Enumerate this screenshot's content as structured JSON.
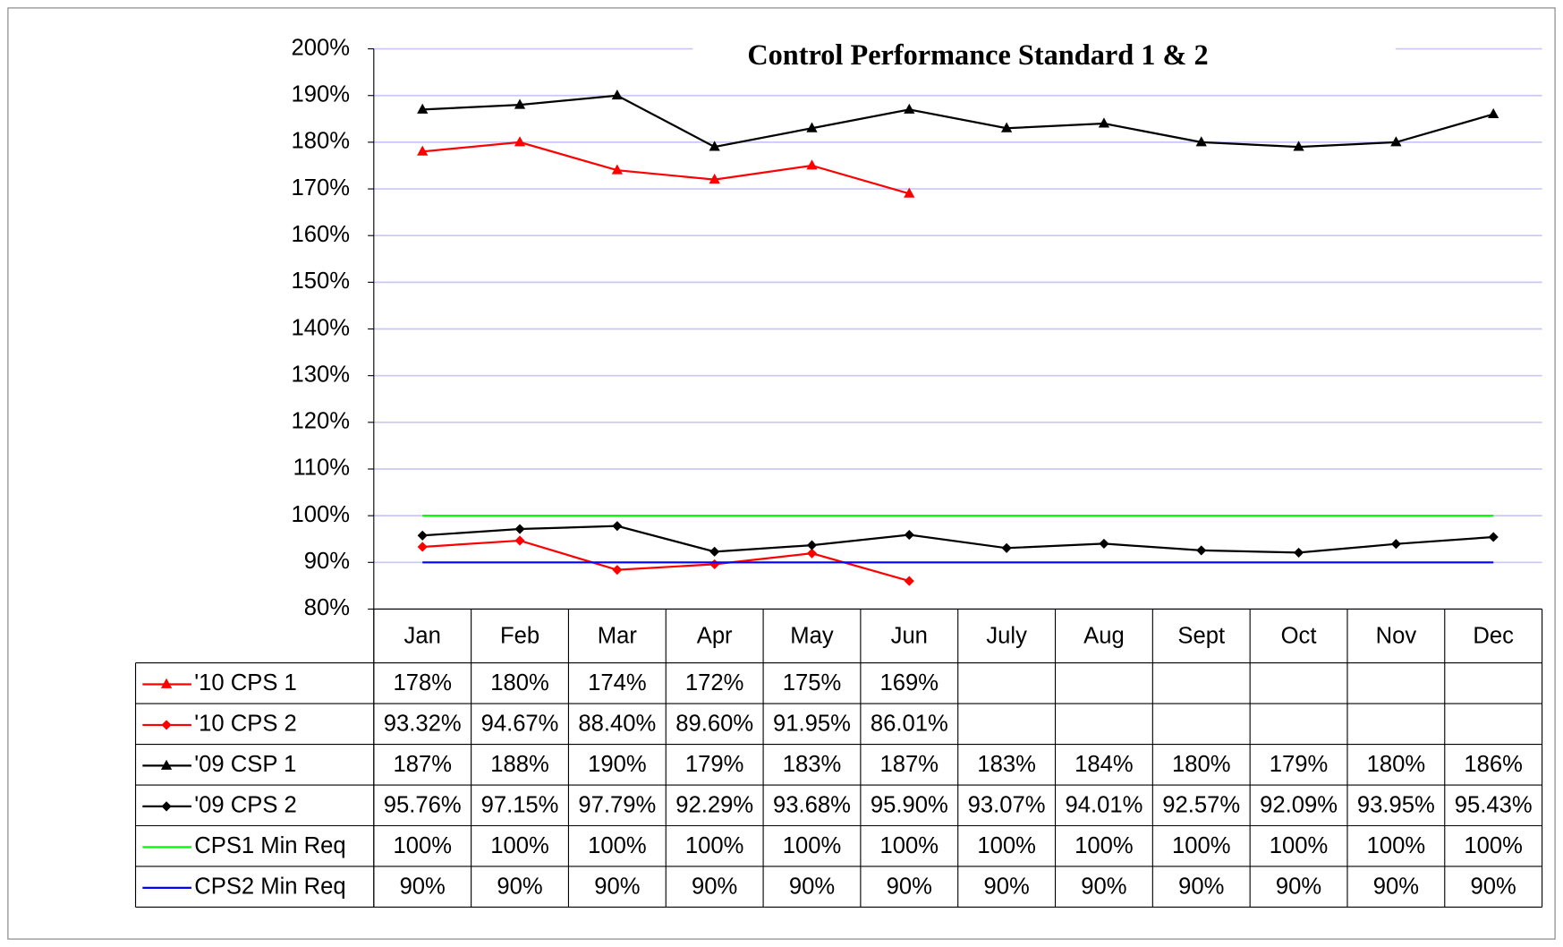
{
  "chart_data": {
    "type": "line",
    "title": "Control Performance Standard 1 & 2",
    "categories": [
      "Jan",
      "Feb",
      "Mar",
      "Apr",
      "May",
      "Jun",
      "July",
      "Aug",
      "Sept",
      "Oct",
      "Nov",
      "Dec"
    ],
    "ylim": [
      80,
      200
    ],
    "yticks": [
      {
        "value": 80,
        "label": "80%"
      },
      {
        "value": 90,
        "label": "90%"
      },
      {
        "value": 100,
        "label": "100%"
      },
      {
        "value": 110,
        "label": "110%"
      },
      {
        "value": 120,
        "label": "120%"
      },
      {
        "value": 130,
        "label": "130%"
      },
      {
        "value": 140,
        "label": "140%"
      },
      {
        "value": 150,
        "label": "150%"
      },
      {
        "value": 160,
        "label": "160%"
      },
      {
        "value": 170,
        "label": "170%"
      },
      {
        "value": 180,
        "label": "180%"
      },
      {
        "value": 190,
        "label": "190%"
      },
      {
        "value": 200,
        "label": "200%"
      }
    ],
    "grid": true,
    "data_table": true,
    "series": [
      {
        "name": "'10 CPS 1",
        "color": "#ff0000",
        "marker": "triangle",
        "values": [
          178,
          180,
          174,
          172,
          175,
          169,
          null,
          null,
          null,
          null,
          null,
          null
        ],
        "value_labels": [
          "178%",
          "180%",
          "174%",
          "172%",
          "175%",
          "169%",
          null,
          null,
          null,
          null,
          null,
          null
        ]
      },
      {
        "name": "'10 CPS 2",
        "color": "#ff0000",
        "marker": "diamond",
        "values": [
          93.32,
          94.67,
          88.4,
          89.6,
          91.95,
          86.01,
          null,
          null,
          null,
          null,
          null,
          null
        ],
        "value_labels": [
          "93.32%",
          "94.67%",
          "88.40%",
          "89.60%",
          "91.95%",
          "86.01%",
          null,
          null,
          null,
          null,
          null,
          null
        ]
      },
      {
        "name": "'09 CSP 1",
        "color": "#000000",
        "marker": "triangle",
        "values": [
          187,
          188,
          190,
          179,
          183,
          187,
          183,
          184,
          180,
          179,
          180,
          186
        ],
        "value_labels": [
          "187%",
          "188%",
          "190%",
          "179%",
          "183%",
          "187%",
          "183%",
          "184%",
          "180%",
          "179%",
          "180%",
          "186%"
        ]
      },
      {
        "name": "'09 CPS 2",
        "color": "#000000",
        "marker": "diamond",
        "values": [
          95.76,
          97.15,
          97.79,
          92.29,
          93.68,
          95.9,
          93.07,
          94.01,
          92.57,
          92.09,
          93.95,
          95.43
        ],
        "value_labels": [
          "95.76%",
          "97.15%",
          "97.79%",
          "92.29%",
          "93.68%",
          "95.90%",
          "93.07%",
          "94.01%",
          "92.57%",
          "92.09%",
          "93.95%",
          "95.43%"
        ]
      },
      {
        "name": "CPS1 Min Req",
        "color": "#00ff00",
        "marker": null,
        "values": [
          100,
          100,
          100,
          100,
          100,
          100,
          100,
          100,
          100,
          100,
          100,
          100
        ],
        "value_labels": [
          "100%",
          "100%",
          "100%",
          "100%",
          "100%",
          "100%",
          "100%",
          "100%",
          "100%",
          "100%",
          "100%",
          "100%"
        ]
      },
      {
        "name": "CPS2 Min Req",
        "color": "#0000ff",
        "marker": null,
        "values": [
          90,
          90,
          90,
          90,
          90,
          90,
          90,
          90,
          90,
          90,
          90,
          90
        ],
        "value_labels": [
          "90%",
          "90%",
          "90%",
          "90%",
          "90%",
          "90%",
          "90%",
          "90%",
          "90%",
          "90%",
          "90%",
          "90%"
        ]
      }
    ]
  }
}
